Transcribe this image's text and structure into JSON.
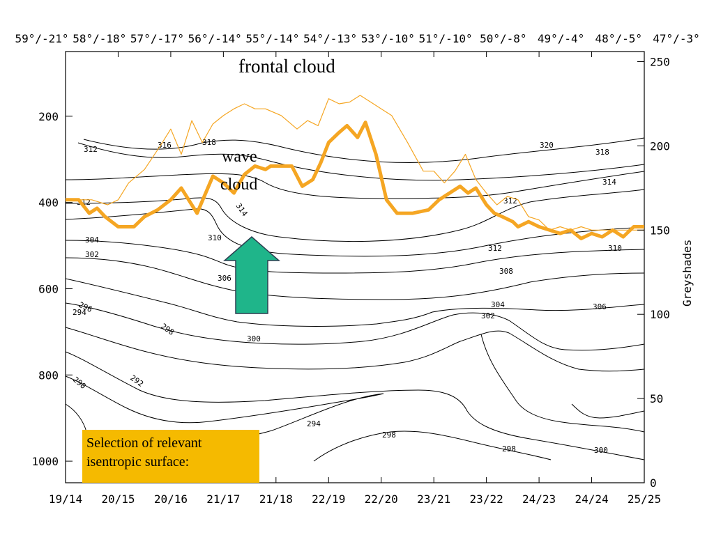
{
  "chart_data": {
    "type": "line",
    "title": "",
    "top_axis": {
      "tick_labels": [
        "59°/-21°",
        "58°/-18°",
        "57°/-17°",
        "56°/-14°",
        "55°/-14°",
        "54°/-13°",
        "53°/-10°",
        "51°/-10°",
        "50°/-8°",
        "49°/-4°",
        "48°/-5°",
        "47°/-3°"
      ]
    },
    "x_axis": {
      "tick_labels": [
        "19/14",
        "20/15",
        "20/16",
        "21/17",
        "21/18",
        "22/19",
        "22/20",
        "23/21",
        "23/22",
        "24/23",
        "24/24",
        "25/25"
      ],
      "range": [
        0,
        11
      ]
    },
    "y_axis_left": {
      "label": "",
      "range": [
        1050,
        50
      ],
      "inverted": true,
      "tick_labels": [
        "200",
        "400",
        "600",
        "800",
        "1000"
      ]
    },
    "y_axis_right": {
      "label": "Greyshades",
      "range": [
        0,
        256
      ],
      "tick_labels": [
        "0",
        "50",
        "100",
        "150",
        "200",
        "250"
      ]
    },
    "contour_labels": [
      "320",
      "318",
      "316",
      "314",
      "312",
      "310",
      "308",
      "306",
      "304",
      "302",
      "300",
      "298",
      "296",
      "294",
      "292",
      "290"
    ],
    "annotations": {
      "frontal_cloud": "frontal cloud",
      "wave_cloud_line1": "wave",
      "wave_cloud_line2": "cloud",
      "selection_line1": "Selection of relevant",
      "selection_line2": "isentropic surface:"
    },
    "colors": {
      "greyshade_series": "#f5a623",
      "arrow": "#1fb58a",
      "annotation_box": "#f5ba00"
    },
    "series": [
      {
        "style": "thick",
        "x": [
          0,
          0.25,
          0.45,
          0.6,
          0.75,
          1.0,
          1.3,
          1.5,
          1.75,
          2.0,
          2.2,
          2.5,
          2.8,
          3.0,
          3.2,
          3.4,
          3.6,
          3.8,
          3.9,
          4.1,
          4.3,
          4.5,
          4.7,
          4.85,
          5.0,
          5.2,
          5.35,
          5.55,
          5.7,
          5.9,
          6.1,
          6.3,
          6.6,
          6.9,
          7.1,
          7.3,
          7.5,
          7.65,
          7.8,
          8.0,
          8.15,
          8.3,
          8.5,
          8.6,
          8.8,
          9.0,
          9.2,
          9.4,
          9.6,
          9.8,
          10.0,
          10.2,
          10.4,
          10.6,
          10.8,
          11.0
        ],
        "y": [
          168,
          168,
          160,
          163,
          158,
          152,
          152,
          158,
          162,
          168,
          175,
          160,
          182,
          178,
          172,
          183,
          188,
          186,
          188,
          188,
          188,
          176,
          180,
          190,
          202,
          208,
          212,
          205,
          214,
          195,
          168,
          160,
          160,
          162,
          168,
          172,
          176,
          172,
          175,
          165,
          160,
          158,
          155,
          152,
          155,
          152,
          150,
          148,
          150,
          145,
          148,
          146,
          150,
          146,
          152,
          152
        ]
      },
      {
        "style": "thin",
        "x": [
          0,
          0.5,
          0.8,
          1.0,
          1.2,
          1.5,
          1.8,
          2.0,
          2.2,
          2.4,
          2.6,
          2.8,
          3.0,
          3.2,
          3.4,
          3.6,
          3.8,
          4.1,
          4.4,
          4.6,
          4.8,
          5.0,
          5.2,
          5.4,
          5.6,
          5.8,
          6.0,
          6.2,
          6.5,
          6.8,
          7.0,
          7.2,
          7.4,
          7.6,
          7.8,
          8.0,
          8.2,
          8.4,
          8.6,
          8.8,
          9.0,
          9.2,
          9.4,
          9.6,
          9.8,
          10.0,
          10.3,
          10.6,
          11.0
        ],
        "y": [
          168,
          168,
          165,
          168,
          178,
          186,
          200,
          210,
          195,
          215,
          202,
          213,
          218,
          222,
          225,
          222,
          222,
          218,
          210,
          215,
          212,
          228,
          225,
          226,
          230,
          226,
          222,
          218,
          202,
          185,
          185,
          178,
          185,
          195,
          180,
          172,
          165,
          170,
          168,
          158,
          156,
          150,
          152,
          150,
          152,
          150,
          150,
          150,
          150
        ]
      }
    ]
  }
}
